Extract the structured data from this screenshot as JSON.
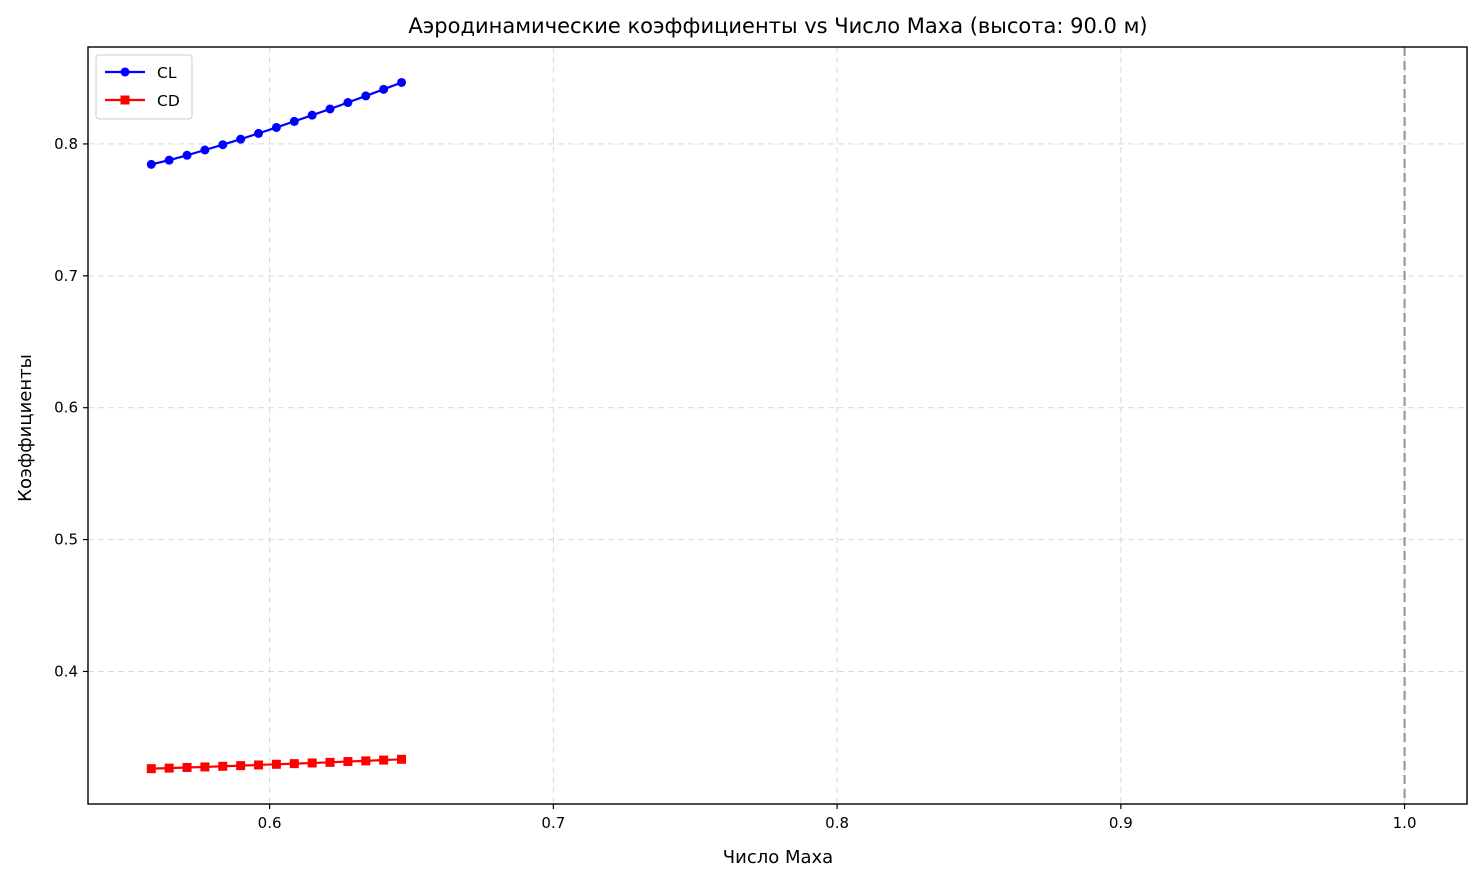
{
  "chart_data": {
    "type": "line",
    "title": "Аэродинамические коэффициенты vs Число Маха (высота: 90.0 м)",
    "xlabel": "Число Маха",
    "ylabel": "Коэффициенты",
    "xlim": [
      0.536,
      1.022
    ],
    "ylim": [
      0.2995,
      0.8735
    ],
    "xticks": [
      0.6,
      0.7,
      0.8,
      0.9,
      1.0
    ],
    "xtick_labels": [
      "0.6",
      "0.7",
      "0.8",
      "0.9",
      "1.0"
    ],
    "yticks": [
      0.4,
      0.5,
      0.6,
      0.7,
      0.8
    ],
    "ytick_labels": [
      "0.4",
      "0.5",
      "0.6",
      "0.7",
      "0.8"
    ],
    "grid": true,
    "legend_position": "top-left",
    "reference_line": {
      "x": 1.0,
      "color": "#999999",
      "style": "dashed"
    },
    "x": [
      0.5583,
      0.5646,
      0.5709,
      0.5772,
      0.5835,
      0.5898,
      0.5961,
      0.6024,
      0.6087,
      0.615,
      0.6213,
      0.6276,
      0.6339,
      0.6402,
      0.6465
    ],
    "series": [
      {
        "name": "CL",
        "color": "#0000ff",
        "marker": "circle",
        "values": [
          0.7845,
          0.7877,
          0.7914,
          0.7954,
          0.7994,
          0.8036,
          0.808,
          0.8125,
          0.8171,
          0.8218,
          0.8265,
          0.8314,
          0.8364,
          0.8414,
          0.8466
        ]
      },
      {
        "name": "CD",
        "color": "#ff0000",
        "marker": "square",
        "values": [
          0.3263,
          0.3267,
          0.3272,
          0.3276,
          0.3281,
          0.3286,
          0.3291,
          0.3296,
          0.3301,
          0.3306,
          0.3311,
          0.3317,
          0.3322,
          0.3328,
          0.3334
        ]
      }
    ]
  }
}
